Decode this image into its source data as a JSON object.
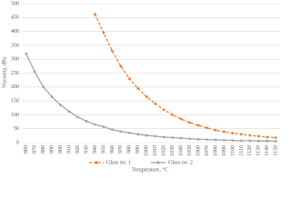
{
  "chart_data": {
    "type": "line",
    "x_label": "Temperature, °C",
    "y_label": "Viscosity, dPa",
    "categories": [
      "860",
      "870",
      "880",
      "890",
      "900",
      "910",
      "920",
      "930",
      "940",
      "950",
      "960",
      "970",
      "980",
      "990",
      "1000",
      "1010",
      "1020",
      "1030",
      "1040",
      "1050",
      "1060",
      "1070",
      "1080",
      "1090",
      "1100",
      "1110",
      "1120",
      "1130",
      "1140",
      "1150"
    ],
    "series": [
      {
        "name": "Glass no. 1",
        "color": "#ed7d31",
        "dashed": true,
        "values": [
          null,
          null,
          null,
          null,
          null,
          null,
          null,
          null,
          462,
          395,
          330,
          275,
          230,
          195,
          165,
          140,
          118,
          100,
          85,
          72,
          62,
          53,
          45,
          39,
          34,
          30,
          26,
          23,
          20,
          18
        ]
      },
      {
        "name": "Glass no. 2",
        "color": "#a5a5a5",
        "dashed": false,
        "values": [
          320,
          255,
          200,
          165,
          135,
          112,
          92,
          77,
          65,
          57,
          47,
          40,
          35,
          30,
          26,
          23,
          20,
          18,
          16,
          14,
          12,
          11,
          10,
          9,
          8,
          7,
          7,
          6,
          6,
          5
        ]
      }
    ],
    "ylim": [
      0,
      500
    ],
    "yticks": [
      0,
      50,
      100,
      150,
      200,
      250,
      300,
      350,
      400,
      450,
      500
    ],
    "grid": true
  }
}
